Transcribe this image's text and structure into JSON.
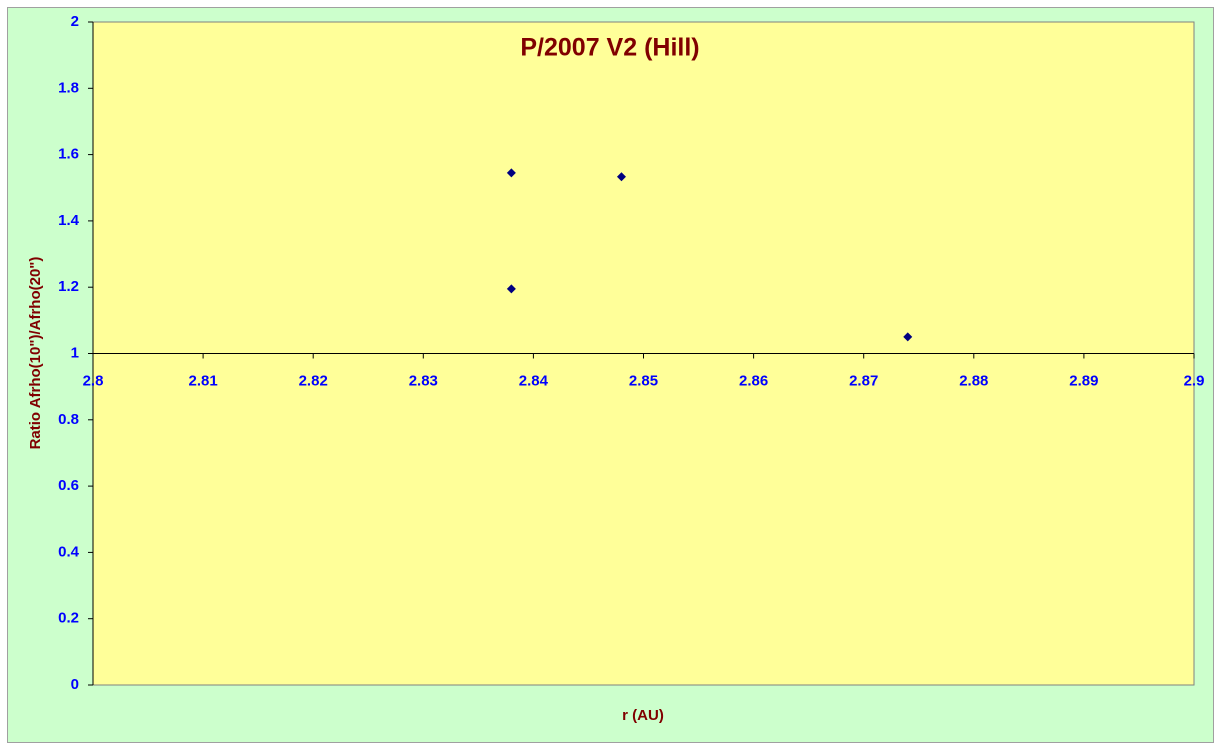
{
  "chart_data": {
    "type": "scatter",
    "title": "P/2007 V2 (Hill)",
    "x_label": "r (AU)",
    "y_label": "Ratio Afrho(10\")/Afrho(20\")",
    "series": [
      {
        "color": "#000080",
        "x": [
          2.838,
          2.838,
          2.848,
          2.874
        ],
        "values": [
          1.545,
          1.195,
          1.533,
          1.05
        ]
      }
    ],
    "xlim": [
      2.8,
      2.9
    ],
    "xticks": [
      2.8,
      2.81,
      2.82,
      2.83,
      2.84,
      2.85,
      2.86,
      2.87,
      2.88,
      2.89,
      2.9
    ],
    "ylim": [
      0,
      2
    ],
    "yticks": [
      0,
      0.2,
      0.4,
      0.6,
      0.8,
      1,
      1.2,
      1.4,
      1.6,
      1.8,
      2
    ],
    "x_axis_crosses_y": 1,
    "grid": false
  }
}
